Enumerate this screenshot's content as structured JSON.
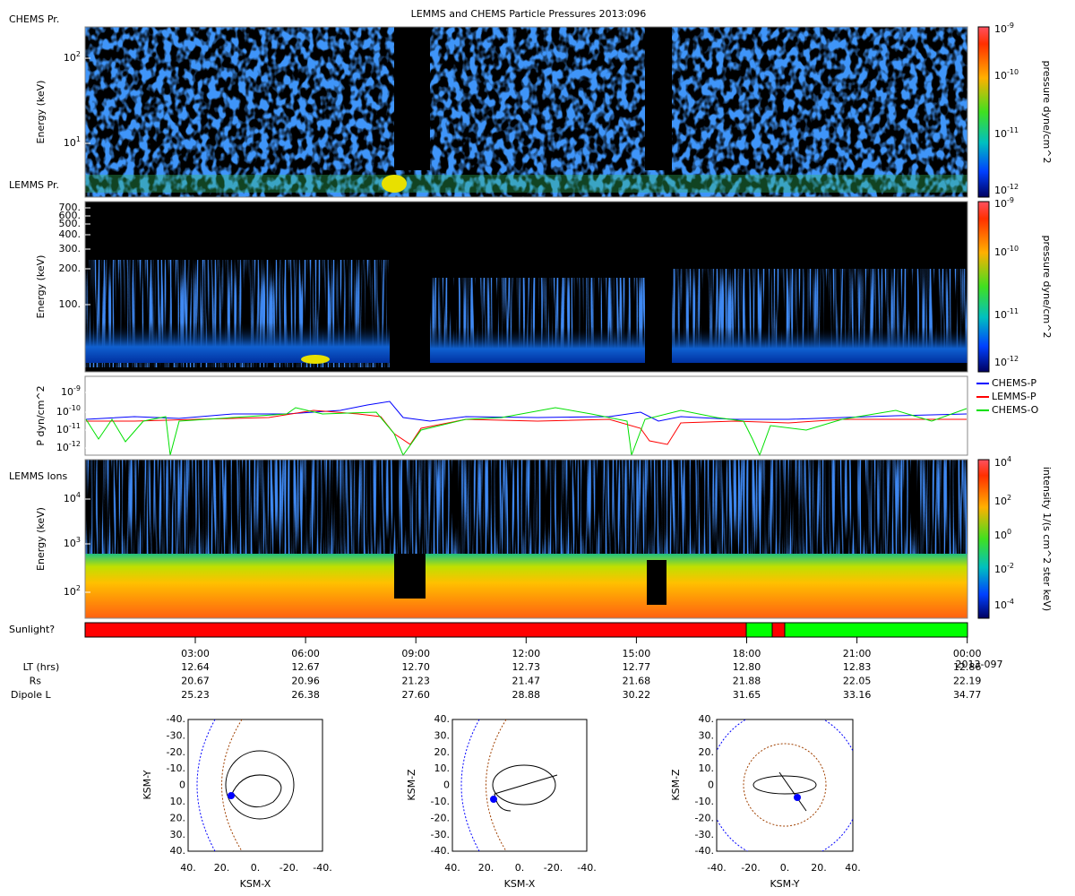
{
  "title": "LEMMS and CHEMS Particle Pressures  2013:096",
  "panels": [
    {
      "labels": [
        "CHEMS Pr.",
        "LEMMS Pr."
      ],
      "y_label": "Energy (keV)",
      "yticks": [
        [
          "10",
          "2"
        ],
        [
          "10",
          "1"
        ]
      ],
      "colorbar_label": "pressure dyne/cm^2",
      "colorbar_ticks": [
        [
          "10",
          "-9"
        ],
        [
          "10",
          "-10"
        ],
        [
          "10",
          "-11"
        ],
        [
          "10",
          "-12"
        ]
      ]
    },
    {
      "y_label": "Energy (keV)",
      "yticks": [
        "700.",
        "600.",
        "500.",
        "400.",
        "300.",
        "200.",
        "100."
      ],
      "colorbar_label": "pressure dyne/cm^2",
      "colorbar_ticks": [
        [
          "10",
          "-9"
        ],
        [
          "10",
          "-10"
        ],
        [
          "10",
          "-11"
        ],
        [
          "10",
          "-12"
        ]
      ]
    },
    {
      "y_label": "P dyn/cm^2",
      "yticks": [
        [
          "10",
          "-9"
        ],
        [
          "10",
          "-10"
        ],
        [
          "10",
          "-11"
        ],
        [
          "10",
          "-12"
        ]
      ],
      "legend": [
        "CHEMS-P",
        "LEMMS-P",
        "CHEMS-O"
      ]
    },
    {
      "labels": [
        "LEMMS Ions"
      ],
      "y_label": "Energy (keV)",
      "yticks": [
        [
          "10",
          "4"
        ],
        [
          "10",
          "3"
        ],
        [
          "10",
          "2"
        ]
      ],
      "colorbar_label": "intensity 1/(s cm^2 ster keV)",
      "colorbar_ticks": [
        [
          "10",
          "4"
        ],
        [
          "10",
          "2"
        ],
        [
          "10",
          "0"
        ],
        [
          "10",
          "-2"
        ],
        [
          "10",
          "-4"
        ]
      ]
    }
  ],
  "sunlight_label": "Sunlight?",
  "time_axis": {
    "ticks": [
      "03:00",
      "06:00",
      "09:00",
      "12:00",
      "15:00",
      "18:00",
      "21:00",
      "00:00"
    ],
    "date": "2013-097",
    "rows": [
      {
        "label": "LT (hrs)",
        "values": [
          "12.64",
          "12.67",
          "12.70",
          "12.73",
          "12.77",
          "12.80",
          "12.83",
          "12.86"
        ]
      },
      {
        "label": "Rs",
        "values": [
          "20.67",
          "20.96",
          "21.23",
          "21.47",
          "21.68",
          "21.88",
          "22.05",
          "22.19"
        ]
      },
      {
        "label": "Dipole L",
        "values": [
          "25.23",
          "26.38",
          "27.60",
          "28.88",
          "30.22",
          "31.65",
          "33.16",
          "34.77"
        ]
      }
    ]
  },
  "orbits": [
    {
      "x_label": "KSM-X",
      "y_label": "KSM-Y",
      "xticks": [
        "40.",
        "20.",
        "0.",
        "-20.",
        "-40."
      ],
      "yticks": [
        "-40.",
        "-30.",
        "-20.",
        "-10.",
        "0",
        "10.",
        "20.",
        "30.",
        "40."
      ]
    },
    {
      "x_label": "KSM-X",
      "y_label": "KSM-Z",
      "xticks": [
        "40.",
        "20.",
        "0.",
        "-20.",
        "-40."
      ],
      "yticks": [
        "40.",
        "30.",
        "20.",
        "10.",
        "0",
        "-10.",
        "-20.",
        "-30.",
        "-40."
      ]
    },
    {
      "x_label": "KSM-Y",
      "y_label": "KSM-Z",
      "xticks": [
        "-40.",
        "-20.",
        "0.",
        "20.",
        "40."
      ],
      "yticks": [
        "40.",
        "30.",
        "20.",
        "10.",
        "0",
        "-10.",
        "-20.",
        "-30.",
        "-40."
      ]
    }
  ]
}
